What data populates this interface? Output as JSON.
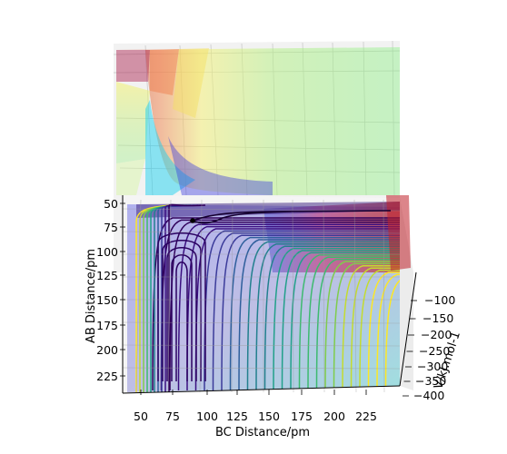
{
  "chart_data": {
    "type": "surface-contour-3d",
    "title": "",
    "xlabel": "BC Distance/pm",
    "ylabel": "AB Distance/pm",
    "zlabel": "V/kJ.mol-1",
    "x_ticks": [
      "50",
      "75",
      "100",
      "125",
      "150",
      "175",
      "200",
      "225"
    ],
    "y_ticks": [
      "50",
      "75",
      "100",
      "125",
      "150",
      "175",
      "200",
      "225"
    ],
    "z_ticks": [
      "−100",
      "−150",
      "−200",
      "−250",
      "−300",
      "−350",
      "−400"
    ],
    "x_range": [
      35,
      240
    ],
    "y_range": [
      30,
      240
    ],
    "z_range": [
      -400,
      -80
    ],
    "grid": true,
    "colormap": "viridis",
    "marker_point": {
      "x": 90,
      "y": 74
    },
    "trajectory_note": "dark path from marker along reaction coordinate"
  },
  "colors": {
    "contour_low": "#30005a",
    "contour_mid": "#21908d",
    "contour_high": "#fde725",
    "surface_red": "#c0202a",
    "surface_green": "#7dee7d",
    "surface_blue": "#2a2ad8",
    "surface_cyan": "#1ed2f0",
    "pane": "#f2f2f2",
    "grid": "#b0b0b0"
  }
}
